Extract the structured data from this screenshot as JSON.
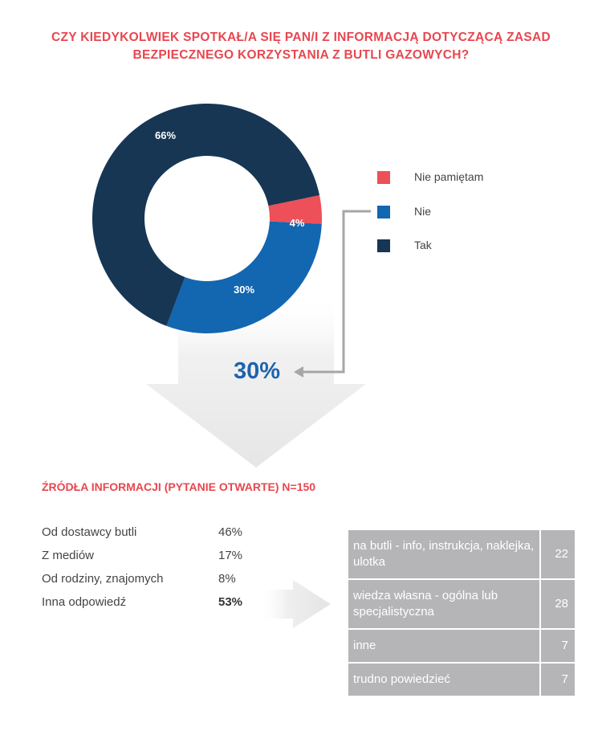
{
  "title_lines": [
    "CZY KIEDYKOLWIEK SPOTKAŁ/A SIĘ PAN/I Z INFORMACJĄ DOTYCZĄCĄ ZASAD",
    "BEZPIECZNEGO KORZYSTANIA Z BUTLI GAZOWYCH?"
  ],
  "chart_data": {
    "type": "pie",
    "donut": true,
    "slices": [
      {
        "label": "Nie pamiętam",
        "value": 4,
        "display": "4%",
        "color": "#ed5058"
      },
      {
        "label": "Nie",
        "value": 30,
        "display": "30%",
        "color": "#1366b0"
      },
      {
        "label": "Tak",
        "value": 66,
        "display": "66%",
        "color": "#163654"
      }
    ],
    "legend_position": "right"
  },
  "legend": [
    {
      "label": "Nie pamiętam",
      "color": "#ed5058"
    },
    {
      "label": "Nie",
      "color": "#1366b0"
    },
    {
      "label": "Tak",
      "color": "#163654"
    }
  ],
  "highlight_value": "30%",
  "highlight_color": "#1b64ad",
  "sources_title": "ŹRÓDŁA INFORMACJI (PYTANIE OTWARTE) N=150",
  "sources": [
    {
      "label": "Od dostawcy butli",
      "value": "46%",
      "bold": false
    },
    {
      "label": "Z mediów",
      "value": "17%",
      "bold": false
    },
    {
      "label": "Od rodziny, znajomych",
      "value": "8%",
      "bold": false
    },
    {
      "label": "Inna odpowiedź",
      "value": "53%",
      "bold": true
    }
  ],
  "other_answers": [
    {
      "label": "na butli - info, instrukcja, naklejka, ulotka",
      "count": "22"
    },
    {
      "label": "wiedza własna - ogólna lub specjalistyczna",
      "count": "28"
    },
    {
      "label": "inne",
      "count": "7"
    },
    {
      "label": "trudno powiedzieć",
      "count": "7"
    }
  ]
}
